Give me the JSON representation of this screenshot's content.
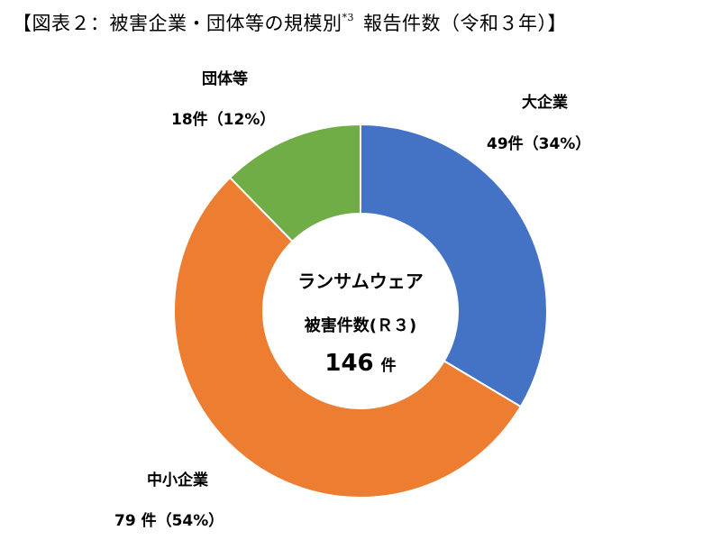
{
  "title": {
    "text": "【図表２：被害企業・団体等の規模別",
    "footnote": "*3",
    "suffix": "報告件数（令和３年）】"
  },
  "center": {
    "line1": "ランサムウェア",
    "line2": "被害件数(Ｒ３)",
    "total": "146",
    "unit": "件"
  },
  "chart_data": {
    "type": "pie",
    "donut": true,
    "total": 146,
    "slices": [
      {
        "name": "大企業",
        "value": 49,
        "value_label": "49件（34%）",
        "percent": 34,
        "color": "#4472C4"
      },
      {
        "name": "中小企業",
        "value": 79,
        "value_label": "79 件（54%）",
        "percent": 54,
        "color": "#ED7D31"
      },
      {
        "name": "団体等",
        "value": 18,
        "value_label": "18件（12%）",
        "percent": 12,
        "color": "#70AD47"
      }
    ]
  }
}
